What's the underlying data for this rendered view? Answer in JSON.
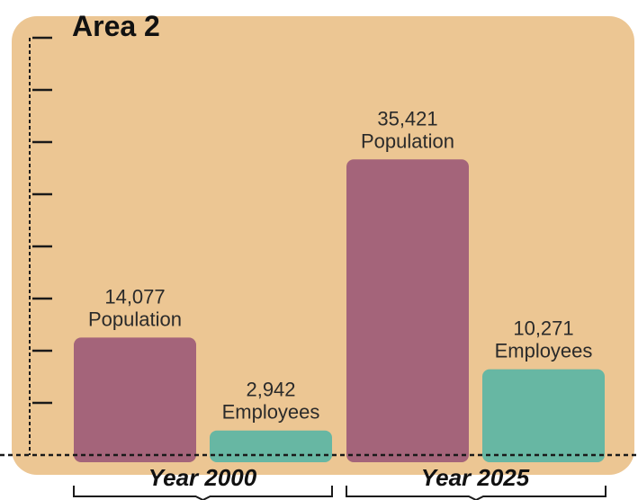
{
  "colors": {
    "panel": "#ecc693",
    "population": "#a4647a",
    "employees": "#67b7a3",
    "axis": "#1a1a1a"
  },
  "chart_data": {
    "type": "bar",
    "title": "Area 2",
    "xlabel": "",
    "ylabel": "",
    "ylim": [
      0,
      50000
    ],
    "y_tick_count": 8,
    "grid": false,
    "legend": "none",
    "groups": [
      "Year 2000",
      "Year 2025"
    ],
    "bars": [
      {
        "group": "Year 2000",
        "series": "Population",
        "value": 14077,
        "value_label": "14,077",
        "category_label": "Population"
      },
      {
        "group": "Year 2000",
        "series": "Employees",
        "value": 2942,
        "value_label": "2,942",
        "category_label": "Employees"
      },
      {
        "group": "Year 2025",
        "series": "Population",
        "value": 35421,
        "value_label": "35,421",
        "category_label": "Population"
      },
      {
        "group": "Year 2025",
        "series": "Employees",
        "value": 10271,
        "value_label": "10,271",
        "category_label": "Employees"
      }
    ]
  }
}
